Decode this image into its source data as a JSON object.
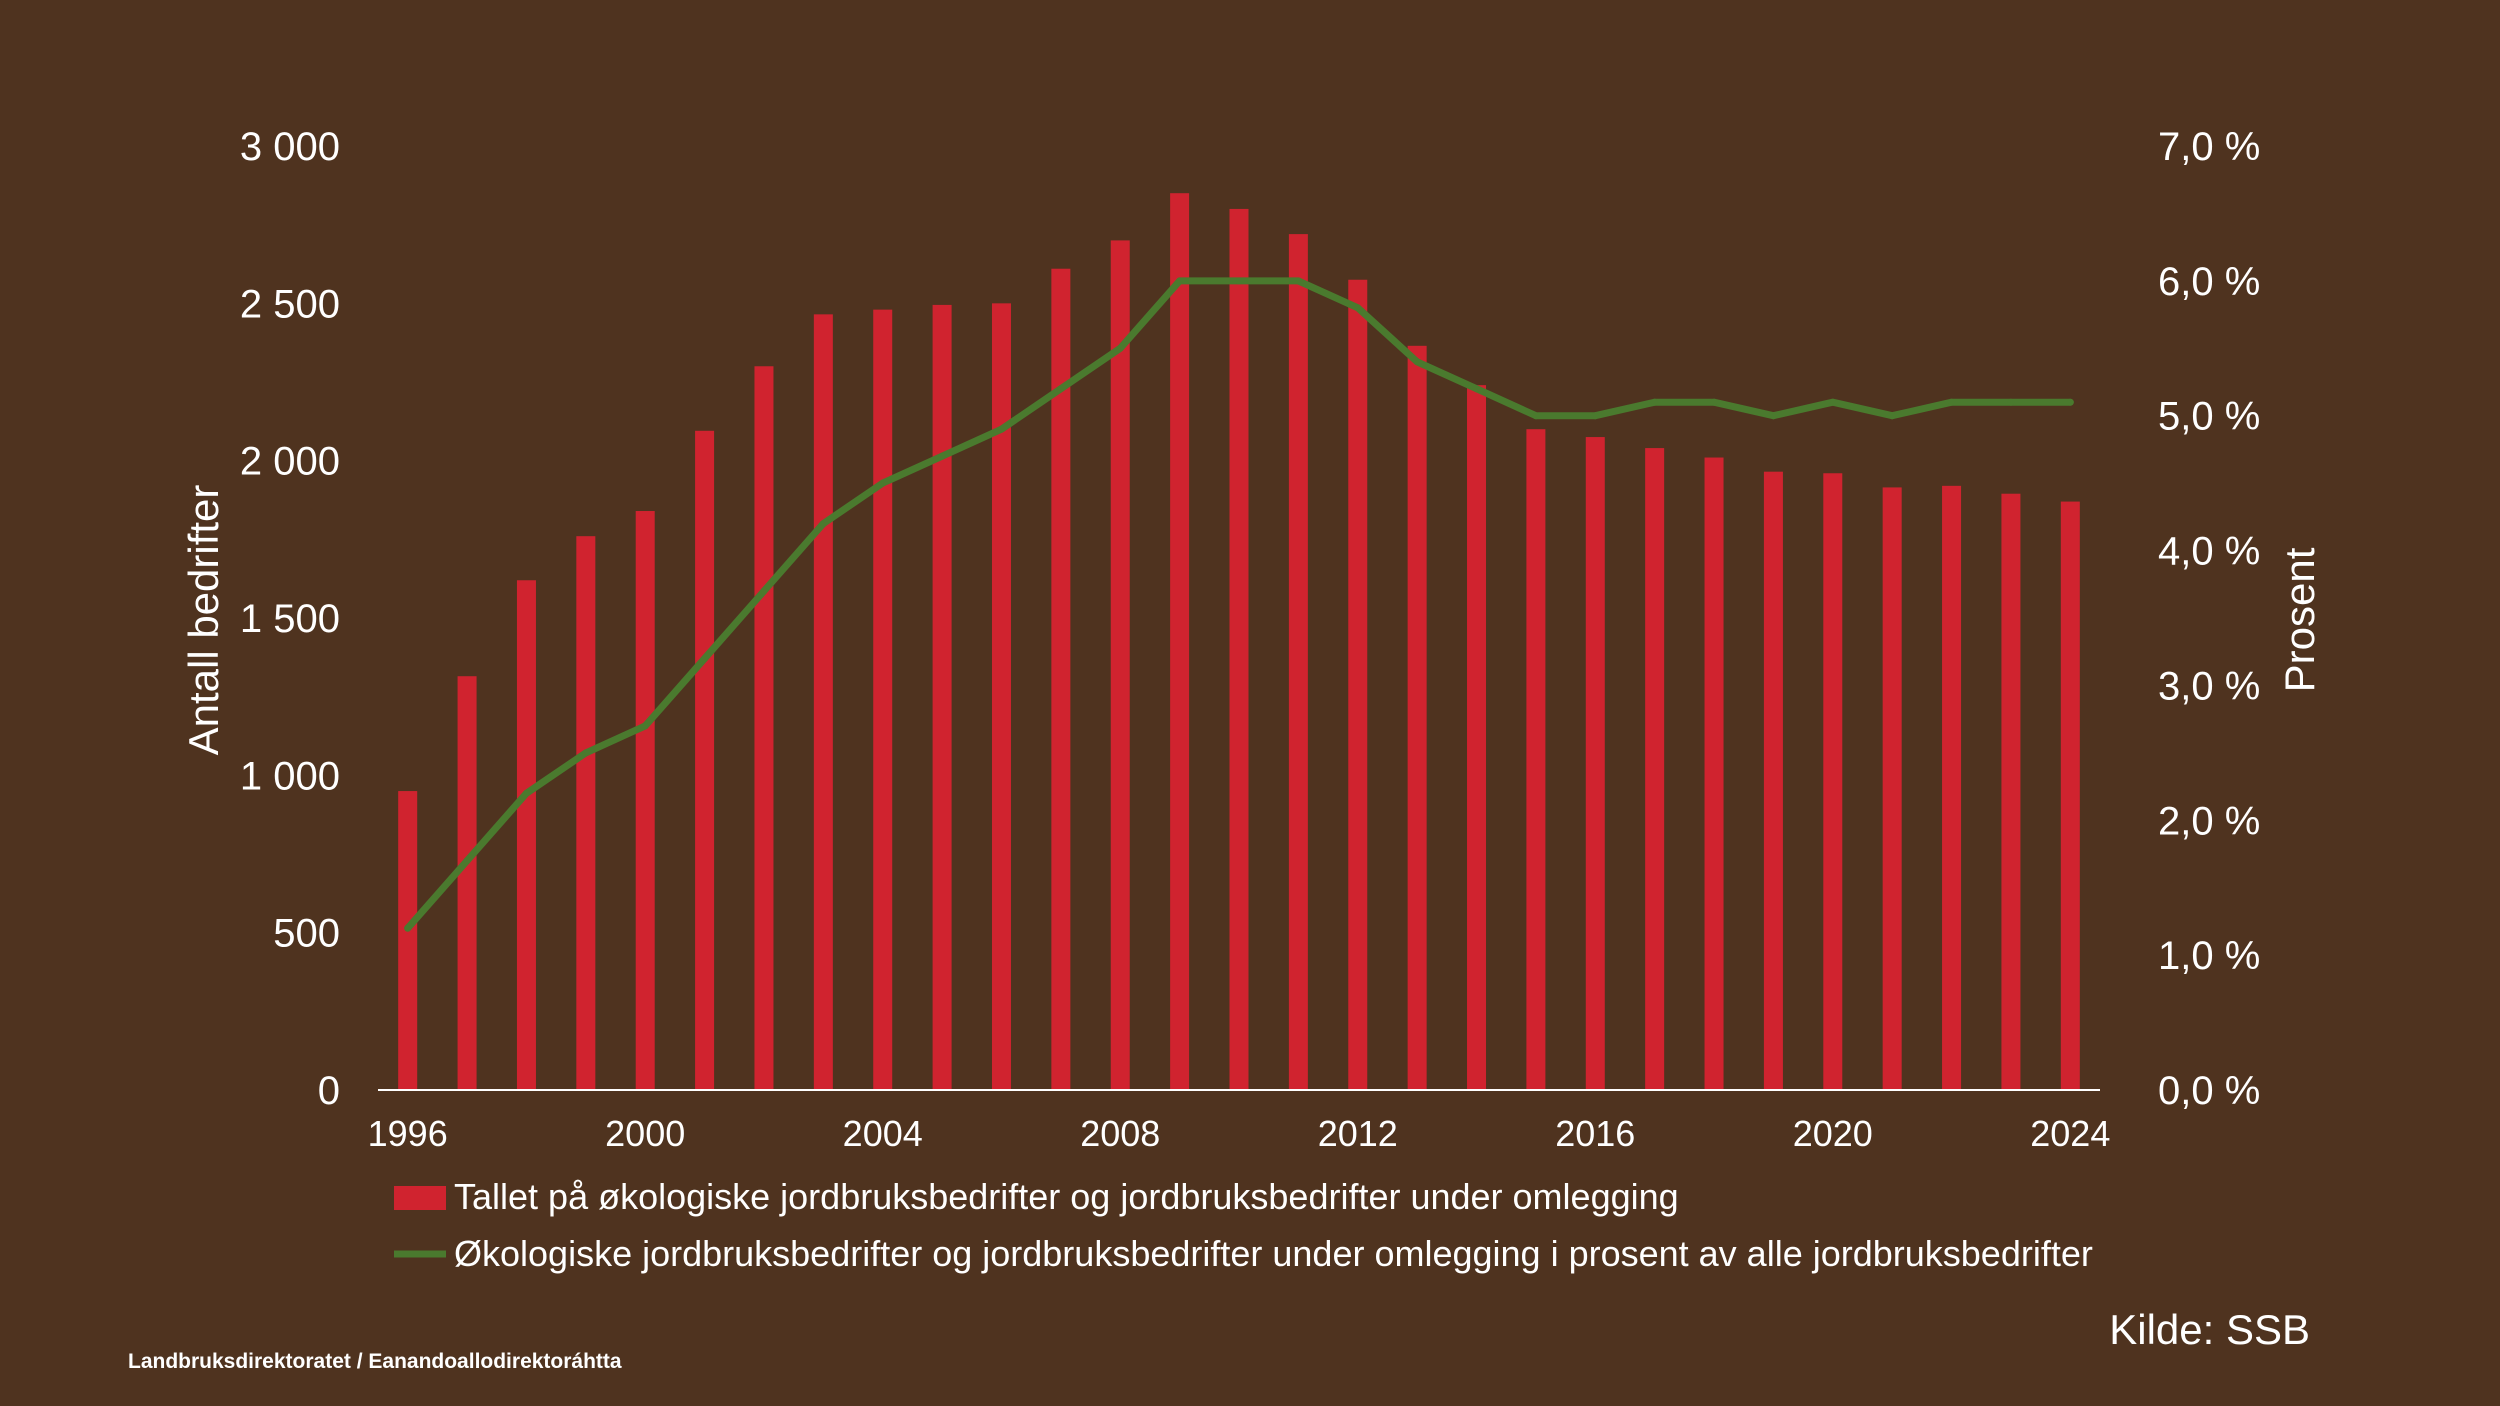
{
  "chart_data": {
    "type": "bar",
    "title": "",
    "xlabel": "",
    "ylabel": "Antall bedrifter",
    "y2label": "Prosent",
    "ylim": [
      0,
      3000
    ],
    "y2lim": [
      0,
      7
    ],
    "y_ticks": [
      "0",
      "500",
      "1 000",
      "1 500",
      "2 000",
      "2 500",
      "3 000"
    ],
    "y2_ticks": [
      "0,0 %",
      "1,0 %",
      "2,0 %",
      "3,0 %",
      "4,0 %",
      "5,0 %",
      "6,0 %",
      "7,0 %"
    ],
    "x_tick_labels": [
      "1996",
      "2000",
      "2004",
      "2008",
      "2012",
      "2016",
      "2020",
      "2024"
    ],
    "categories": [
      1996,
      1997,
      1998,
      1999,
      2000,
      2001,
      2002,
      2003,
      2004,
      2005,
      2006,
      2007,
      2008,
      2009,
      2010,
      2011,
      2012,
      2013,
      2014,
      2015,
      2016,
      2017,
      2018,
      2019,
      2020,
      2021,
      2022,
      2023,
      2024
    ],
    "series": [
      {
        "name": "Tallet på økologiske jordbruksbedrifter og jordbruksbedrifter under omlegging",
        "kind": "bar",
        "axis": "left",
        "color": "#d0232f",
        "values": [
          950,
          1315,
          1620,
          1760,
          1840,
          2095,
          2300,
          2465,
          2480,
          2495,
          2500,
          2610,
          2700,
          2850,
          2800,
          2720,
          2575,
          2365,
          2240,
          2100,
          2075,
          2040,
          2010,
          1965,
          1960,
          1915,
          1920,
          1895,
          1870
        ]
      },
      {
        "name": "Økologiske jordbruksbedrifter og jordbruksbedrifter under omlegging i prosent av alle jordbruksbedrifter",
        "kind": "line",
        "axis": "right",
        "color": "#4a7a2e",
        "values": [
          1.2,
          1.7,
          2.2,
          2.5,
          2.7,
          3.2,
          3.7,
          4.2,
          4.5,
          4.7,
          4.9,
          5.2,
          5.5,
          6.0,
          6.0,
          6.0,
          5.8,
          5.4,
          5.2,
          5.0,
          5.0,
          5.1,
          5.1,
          5.0,
          5.1,
          5.0,
          5.1,
          5.1,
          5.1
        ]
      }
    ]
  },
  "source": "Kilde: SSB",
  "footer": "Landbruksdirektoratet / Eanandoallodirektoráhtta"
}
